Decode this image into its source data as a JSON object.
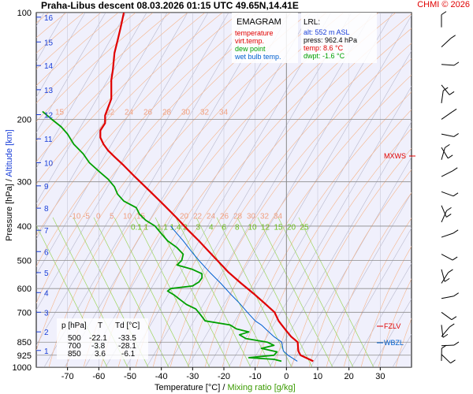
{
  "header": {
    "title": "Praha-Libus   descent   08.03.2026 01:15 UTC  49.65N,14.41E",
    "copyright": "CHMI © 2026"
  },
  "axes": {
    "ylabel_pressure": "Pressure [hPa]",
    "ylabel_separator": " / ",
    "ylabel_altitude": "Altitude [km]",
    "xlabel_temperature": "Temperature [°C]",
    "xlabel_separator": " / ",
    "xlabel_mixing": "Mixing ratio [g/kg]"
  },
  "legend": {
    "title": "EMAGRAM",
    "items": [
      {
        "label": "temperature",
        "color": "#e00000"
      },
      {
        "label": "virt.temp.",
        "color": "#e00000"
      },
      {
        "label": "dew point",
        "color": "#00a000"
      },
      {
        "label": "wet bulb temp.",
        "color": "#0060d0"
      }
    ]
  },
  "lrl": {
    "title": "LRL:",
    "alt": "alt: 552 m ASL",
    "press": "press: 962.4 hPa",
    "temp": "temp: 8.6 °C",
    "dwpt": "dwpt: -1.6 °C",
    "colors": {
      "alt": "#1a3fd8",
      "press": "#000000",
      "temp": "#e00000",
      "dwpt": "#00a000"
    }
  },
  "table": {
    "headers": [
      "p [hPa]",
      "T",
      "Td [°C]"
    ],
    "rows": [
      [
        "500",
        "-22.1",
        "-33.5"
      ],
      [
        "700",
        "-3.8",
        "-28.1"
      ],
      [
        "850",
        "3.6",
        "-6.1"
      ]
    ]
  },
  "levels": {
    "mxws": "MXWS",
    "fzlv": "FZLV",
    "wbzl": "WBZL"
  },
  "chart_data": {
    "type": "line",
    "title": "EMAGRAM",
    "x_ticks": [
      -70,
      -60,
      -50,
      -40,
      -30,
      -20,
      -10,
      0,
      10,
      20,
      30
    ],
    "x_range": [
      -80,
      40
    ],
    "y_scale": "log",
    "y_ticks": [
      100,
      200,
      300,
      400,
      500,
      600,
      700,
      850,
      925,
      1000
    ],
    "y_tick_labels": [
      "100",
      "200",
      "300",
      "400",
      "500",
      "600",
      "700",
      "850",
      "925",
      "1000"
    ],
    "y_range": [
      100,
      1000
    ],
    "altitude_ticks_km": [
      {
        "label": "1",
        "p": 897
      },
      {
        "label": "2",
        "p": 795
      },
      {
        "label": "3",
        "p": 700
      },
      {
        "label": "4",
        "p": 616
      },
      {
        "label": "5",
        "p": 541
      },
      {
        "label": "6",
        "p": 472
      },
      {
        "label": "7",
        "p": 411
      },
      {
        "label": "8",
        "p": 356
      },
      {
        "label": "9",
        "p": 308
      },
      {
        "label": "10",
        "p": 265
      },
      {
        "label": "11",
        "p": 227
      },
      {
        "label": "12",
        "p": 194
      },
      {
        "label": "13",
        "p": 165
      },
      {
        "label": "14",
        "p": 141
      },
      {
        "label": "15",
        "p": 121
      },
      {
        "label": "16",
        "p": 103
      }
    ],
    "isotherm_labels_upper": {
      "p": 195,
      "values": [
        15,
        22,
        24,
        26,
        28,
        30,
        32,
        34
      ]
    },
    "isotherm_labels_lower": {
      "p": 385,
      "values": [
        -10,
        -5,
        0,
        5,
        10,
        15,
        20,
        22,
        24,
        26,
        28,
        30,
        32,
        34
      ]
    },
    "mixing_ratio_labels": [
      0.1,
      1,
      1.1,
      1.4,
      2,
      3,
      4,
      6,
      8,
      10,
      12,
      15,
      20,
      25
    ],
    "series": [
      {
        "name": "temperature",
        "color": "#e00000",
        "points": [
          [
            962,
            8.6
          ],
          [
            925,
            4.5
          ],
          [
            900,
            3.8
          ],
          [
            850,
            3.6
          ],
          [
            820,
            1.5
          ],
          [
            790,
            0
          ],
          [
            760,
            -1.5
          ],
          [
            740,
            -2.5
          ],
          [
            700,
            -3.8
          ],
          [
            660,
            -7
          ],
          [
            620,
            -10.5
          ],
          [
            580,
            -14.5
          ],
          [
            540,
            -18.5
          ],
          [
            500,
            -22.1
          ],
          [
            470,
            -25
          ],
          [
            440,
            -28
          ],
          [
            410,
            -31.5
          ],
          [
            380,
            -35
          ],
          [
            350,
            -39
          ],
          [
            320,
            -43.5
          ],
          [
            290,
            -48.5
          ],
          [
            270,
            -52
          ],
          [
            255,
            -55
          ],
          [
            245,
            -57
          ],
          [
            235,
            -58.5
          ],
          [
            225,
            -59.5
          ],
          [
            215,
            -59.5
          ],
          [
            205,
            -58
          ],
          [
            195,
            -58
          ],
          [
            185,
            -57
          ],
          [
            175,
            -56
          ],
          [
            165,
            -56
          ],
          [
            155,
            -56
          ],
          [
            145,
            -55.5
          ],
          [
            130,
            -55
          ],
          [
            120,
            -54
          ],
          [
            110,
            -53
          ],
          [
            100,
            -52
          ]
        ]
      },
      {
        "name": "dew point",
        "color": "#00a000",
        "points": [
          [
            962,
            -1.6
          ],
          [
            950,
            -4
          ],
          [
            940,
            -12
          ],
          [
            925,
            -4
          ],
          [
            905,
            -3
          ],
          [
            885,
            -8
          ],
          [
            868,
            -4
          ],
          [
            850,
            -6.1
          ],
          [
            830,
            -13
          ],
          [
            810,
            -15
          ],
          [
            795,
            -12
          ],
          [
            780,
            -16
          ],
          [
            760,
            -18
          ],
          [
            740,
            -26
          ],
          [
            720,
            -27
          ],
          [
            700,
            -28.1
          ],
          [
            685,
            -29
          ],
          [
            665,
            -32
          ],
          [
            645,
            -34
          ],
          [
            625,
            -36
          ],
          [
            610,
            -38
          ],
          [
            600,
            -37
          ],
          [
            590,
            -30
          ],
          [
            575,
            -28
          ],
          [
            560,
            -27
          ],
          [
            545,
            -27
          ],
          [
            530,
            -30
          ],
          [
            515,
            -35
          ],
          [
            500,
            -33.5
          ],
          [
            480,
            -33
          ],
          [
            460,
            -35
          ],
          [
            440,
            -38
          ],
          [
            420,
            -40
          ],
          [
            400,
            -42
          ],
          [
            385,
            -45
          ],
          [
            370,
            -47
          ],
          [
            355,
            -48
          ],
          [
            340,
            -52
          ],
          [
            325,
            -54
          ],
          [
            310,
            -55
          ],
          [
            295,
            -57
          ],
          [
            280,
            -60
          ],
          [
            265,
            -63
          ],
          [
            250,
            -65
          ],
          [
            235,
            -68
          ],
          [
            220,
            -70
          ],
          [
            210,
            -72
          ],
          [
            200,
            -75
          ],
          [
            190,
            -78
          ]
        ]
      },
      {
        "name": "wet bulb temp.",
        "color": "#0060d0",
        "points": [
          [
            962,
            3.5
          ],
          [
            925,
            0.5
          ],
          [
            900,
            -1
          ],
          [
            850,
            -1.5
          ],
          [
            820,
            -4
          ],
          [
            790,
            -6
          ],
          [
            760,
            -8
          ],
          [
            740,
            -10
          ],
          [
            700,
            -12.5
          ],
          [
            660,
            -15
          ],
          [
            620,
            -18
          ],
          [
            580,
            -21
          ],
          [
            540,
            -24.5
          ],
          [
            500,
            -28
          ],
          [
            470,
            -30.5
          ],
          [
            440,
            -33
          ],
          [
            410,
            -36
          ],
          [
            400,
            -37
          ]
        ]
      }
    ]
  }
}
